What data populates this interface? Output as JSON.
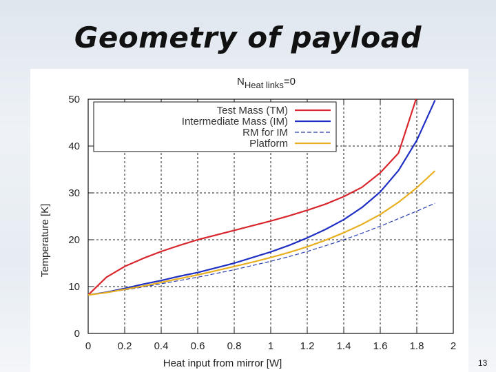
{
  "slide": {
    "title": "Geometry of payload",
    "page_number": "13"
  },
  "colors": {
    "test_mass": "#d9262c",
    "intermediate_mass": "#1f2fc4",
    "rm_for_im": "#2a3fb0",
    "platform": "#e8b020"
  },
  "chart_data": {
    "type": "line",
    "title_main": "N",
    "title_sub": "Heat links",
    "title_suffix": "=0",
    "xlabel": "Heat input from mirror [W]",
    "ylabel": "Temperature [K]",
    "xlim": [
      0,
      2
    ],
    "ylim": [
      0,
      50
    ],
    "x_ticks": [
      "0",
      "0.2",
      "0.4",
      "0.6",
      "0.8",
      "1",
      "1.2",
      "1.4",
      "1.6",
      "1.8",
      "2"
    ],
    "y_ticks": [
      "0",
      "10",
      "20",
      "30",
      "40",
      "50"
    ],
    "grid": true,
    "legend_position": "top-left",
    "series": [
      {
        "name": "Test Mass (TM)",
        "color": "#d9262c",
        "style": "solid",
        "x": [
          0,
          0.1,
          0.2,
          0.3,
          0.4,
          0.5,
          0.6,
          0.7,
          0.8,
          0.9,
          1.0,
          1.1,
          1.2,
          1.3,
          1.4,
          1.5,
          1.6,
          1.7,
          1.8
        ],
        "y": [
          8.2,
          12,
          14.3,
          16,
          17.5,
          18.8,
          20,
          21,
          22,
          23,
          24,
          25.1,
          26.3,
          27.6,
          29.2,
          31.2,
          34.3,
          38.5,
          50.5
        ]
      },
      {
        "name": "Intermediate Mass (IM)",
        "color": "#1f2fc4",
        "style": "solid",
        "x": [
          0,
          0.1,
          0.2,
          0.3,
          0.4,
          0.5,
          0.6,
          0.7,
          0.8,
          0.9,
          1.0,
          1.1,
          1.2,
          1.3,
          1.4,
          1.5,
          1.6,
          1.7,
          1.8,
          1.9
        ],
        "y": [
          8.2,
          8.8,
          9.6,
          10.5,
          11.3,
          12.2,
          13,
          14,
          15,
          16.2,
          17.4,
          18.8,
          20.4,
          22.2,
          24.3,
          26.9,
          30.2,
          34.8,
          41.2,
          49.8
        ]
      },
      {
        "name": "RM for IM",
        "color": "#2a3fb0",
        "style": "dashed",
        "x": [
          0,
          0.1,
          0.2,
          0.3,
          0.4,
          0.5,
          0.6,
          0.7,
          0.8,
          0.9,
          1.0,
          1.1,
          1.2,
          1.3,
          1.4,
          1.5,
          1.6,
          1.7,
          1.8,
          1.9
        ],
        "y": [
          8.2,
          8.7,
          9.3,
          9.9,
          10.6,
          11.3,
          12,
          12.8,
          13.6,
          14.5,
          15.4,
          16.4,
          17.5,
          18.7,
          20,
          21.4,
          22.9,
          24.5,
          26.1,
          27.8
        ]
      },
      {
        "name": "Platform",
        "color": "#e8b020",
        "style": "solid",
        "x": [
          0,
          0.1,
          0.2,
          0.3,
          0.4,
          0.5,
          0.6,
          0.7,
          0.8,
          0.9,
          1.0,
          1.1,
          1.2,
          1.3,
          1.4,
          1.5,
          1.6,
          1.7,
          1.8,
          1.9
        ],
        "y": [
          8.2,
          8.7,
          9.4,
          10.1,
          10.9,
          11.7,
          12.5,
          13.4,
          14.3,
          15.2,
          16.2,
          17.3,
          18.5,
          19.9,
          21.5,
          23.3,
          25.4,
          28,
          31.1,
          34.7
        ]
      }
    ]
  }
}
